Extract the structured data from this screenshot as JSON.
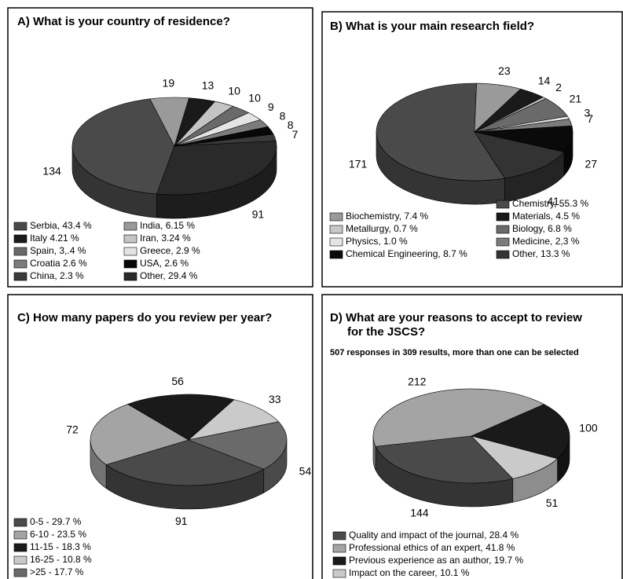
{
  "chart_data": [
    {
      "type": "pie",
      "title": "A)  What is your country of residence?",
      "categories": [
        "Serbia, 43.4 %",
        "India, 6.15 %",
        "Italy 4.21 %",
        "Iran, 3.24 %",
        "Spain, 3,.4 %",
        "Greece, 2.9 %",
        "Croatia 2.6 %",
        "USA, 2.6 %",
        "China, 2.3 %",
        "Other, 29.4 %"
      ],
      "values": [
        134,
        19,
        13,
        10,
        10,
        9,
        8,
        8,
        7,
        91
      ],
      "colors": [
        "#4a4a4a",
        "#9a9a9a",
        "#1a1a1a",
        "#c4c4c4",
        "#6a6a6a",
        "#e4e4e4",
        "#7c7c7c",
        "#080808",
        "#3a3a3a",
        "#2a2a2a"
      ]
    },
    {
      "type": "pie",
      "title": "B) What is your main research field?",
      "categories": [
        "Chemistry, 55.3 %",
        "Biochemistry, 7.4 %",
        "Materials, 4.5 %",
        "Metallurgy, 0.7 %",
        "Biology, 6.8 %",
        "Physics, 1.0 %",
        "Medicine, 2,3 %",
        "Chemical Engineering, 8.7 %",
        "Other, 13.3 %"
      ],
      "values": [
        171,
        23,
        14,
        2,
        21,
        3,
        7,
        27,
        41
      ],
      "colors": [
        "#4a4a4a",
        "#9a9a9a",
        "#1a1a1a",
        "#c8c8c8",
        "#6a6a6a",
        "#e4e4e4",
        "#7c7c7c",
        "#0a0a0a",
        "#333333"
      ]
    },
    {
      "type": "pie",
      "title": "C) How many papers do you review per year?",
      "categories": [
        "0-5 - 29.7 %",
        "6-10 - 23.5 %",
        "11-15 - 18.3 %",
        "16-25 - 10.8 %",
        ">25 - 17.7 %"
      ],
      "values": [
        91,
        72,
        56,
        33,
        54
      ],
      "colors": [
        "#4a4a4a",
        "#a4a4a4",
        "#1a1a1a",
        "#cacaca",
        "#6a6a6a"
      ]
    },
    {
      "type": "pie",
      "title": [
        "D) What are your reasons to accept to review",
        "for the JSCS?"
      ],
      "subtitle": "507 responses in 309 results, more than one can be selected",
      "categories": [
        "Quality and impact of the journal, 28.4 %",
        "Professional ethics of an expert, 41.8 %",
        "Previous experience as an author, 19.7 %",
        "Impact on the career, 10.1 %"
      ],
      "values": [
        144,
        212,
        100,
        51
      ],
      "colors": [
        "#4a4a4a",
        "#a4a4a4",
        "#1a1a1a",
        "#cacaca"
      ]
    }
  ]
}
